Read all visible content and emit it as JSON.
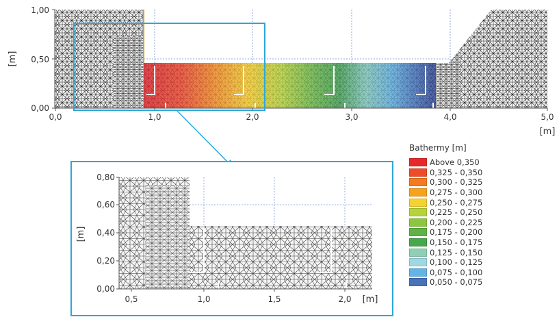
{
  "top_plot": {
    "y_ticks": [
      "1,00",
      "0,50",
      "0,00"
    ],
    "x_ticks": [
      "0,0",
      "1,0",
      "2,0",
      "3,0",
      "4,0",
      "5,0"
    ],
    "y_label": "[m]",
    "x_label": "[m]"
  },
  "zoom_plot": {
    "y_ticks": [
      "0,80",
      "0,60",
      "0,40",
      "0,20",
      "0,00"
    ],
    "x_ticks": [
      "0,5",
      "1,0",
      "1,5",
      "2,0"
    ],
    "y_label": "[m]",
    "x_label": "[m]"
  },
  "legend": {
    "title": "Bathermy [m]",
    "items": [
      {
        "label": "Above 0,350",
        "color": "#e8272a"
      },
      {
        "label": "0,325 - 0,350",
        "color": "#ef4a2a"
      },
      {
        "label": "0,300 - 0,325",
        "color": "#f47a22"
      },
      {
        "label": "0,275 - 0,300",
        "color": "#f6a31b"
      },
      {
        "label": "0,250 - 0,275",
        "color": "#f5d22d"
      },
      {
        "label": "0,225 - 0,250",
        "color": "#b6d43a"
      },
      {
        "label": "0,200 - 0,225",
        "color": "#8cc63f"
      },
      {
        "label": "0,175 - 0,200",
        "color": "#5fb346"
      },
      {
        "label": "0,150 - 0,175",
        "color": "#46a84b"
      },
      {
        "label": "0,125 - 0,150",
        "color": "#8fcfb5"
      },
      {
        "label": "0,100 - 0,125",
        "color": "#9ed9e3"
      },
      {
        "label": "0,075 - 0,100",
        "color": "#63b4e6"
      },
      {
        "label": "0,050 - 0,075",
        "color": "#4a72b8"
      }
    ]
  }
}
